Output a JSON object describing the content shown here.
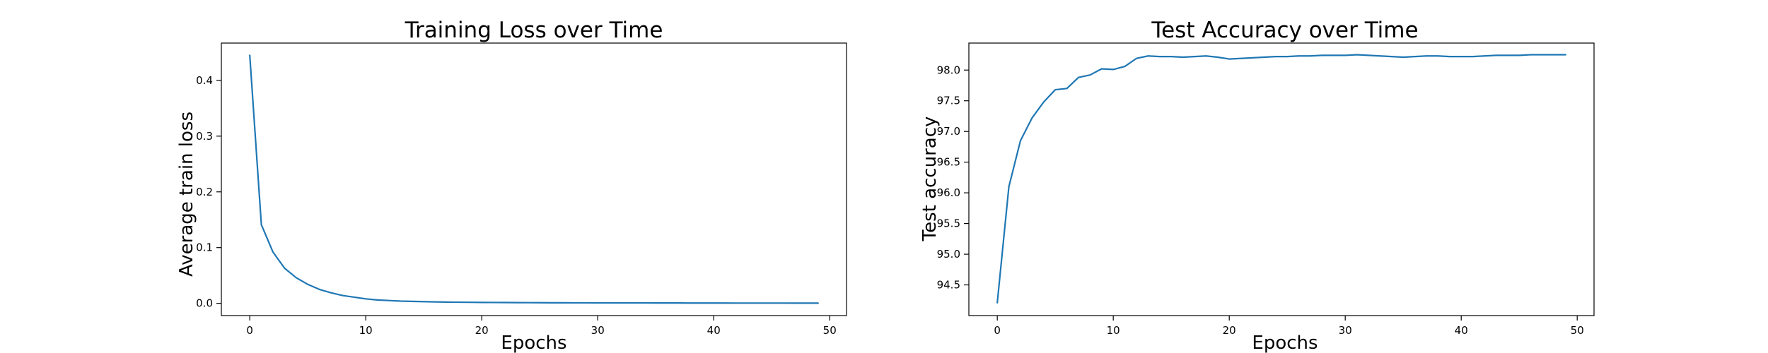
{
  "chart_data": [
    {
      "type": "line",
      "title": "Training Loss over Time",
      "xlabel": "Epochs",
      "ylabel": "Average train loss",
      "xlim": [
        -2.45,
        51.45
      ],
      "ylim": [
        -0.022,
        0.467
      ],
      "xticks": [
        0,
        10,
        20,
        30,
        40,
        50
      ],
      "xtick_labels": [
        "0",
        "10",
        "20",
        "30",
        "40",
        "50"
      ],
      "yticks": [
        0.0,
        0.1,
        0.2,
        0.3,
        0.4
      ],
      "ytick_labels": [
        "0.0",
        "0.1",
        "0.2",
        "0.3",
        "0.4"
      ],
      "grid": false,
      "color": "#1f77b4",
      "series": [
        {
          "x": [
            0,
            1,
            2,
            3,
            4,
            5,
            6,
            7,
            8,
            9,
            10,
            11,
            12,
            13,
            14,
            15,
            16,
            17,
            18,
            19,
            20,
            21,
            22,
            23,
            24,
            25,
            26,
            27,
            28,
            29,
            30,
            31,
            32,
            33,
            34,
            35,
            36,
            37,
            38,
            39,
            40,
            41,
            42,
            43,
            44,
            45,
            46,
            47,
            48,
            49
          ],
          "values": [
            0.445,
            0.141,
            0.092,
            0.063,
            0.046,
            0.034,
            0.025,
            0.019,
            0.014,
            0.011,
            0.008,
            0.006,
            0.005,
            0.004,
            0.0035,
            0.003,
            0.0025,
            0.0022,
            0.002,
            0.0018,
            0.0016,
            0.0015,
            0.0014,
            0.0013,
            0.0012,
            0.0011,
            0.001,
            0.001,
            0.0009,
            0.0009,
            0.0008,
            0.0008,
            0.0007,
            0.0007,
            0.0007,
            0.0006,
            0.0006,
            0.0006,
            0.0005,
            0.0005,
            0.0005,
            0.0005,
            0.0004,
            0.0004,
            0.0004,
            0.0004,
            0.0004,
            0.0003,
            0.0003,
            0.0003
          ]
        }
      ]
    },
    {
      "type": "line",
      "title": "Test Accuracy over Time",
      "xlabel": "Epochs",
      "ylabel": "Test accuracy",
      "xlim": [
        -2.45,
        51.45
      ],
      "ylim": [
        94.0,
        98.44
      ],
      "xticks": [
        0,
        10,
        20,
        30,
        40,
        50
      ],
      "xtick_labels": [
        "0",
        "10",
        "20",
        "30",
        "40",
        "50"
      ],
      "yticks": [
        94.5,
        95.0,
        95.5,
        96.0,
        96.5,
        97.0,
        97.5,
        98.0
      ],
      "ytick_labels": [
        "94.5",
        "95.0",
        "95.5",
        "96.0",
        "96.5",
        "97.0",
        "97.5",
        "98.0"
      ],
      "grid": false,
      "color": "#1f77b4",
      "series": [
        {
          "x": [
            0,
            1,
            2,
            3,
            4,
            5,
            6,
            7,
            8,
            9,
            10,
            11,
            12,
            13,
            14,
            15,
            16,
            17,
            18,
            19,
            20,
            21,
            22,
            23,
            24,
            25,
            26,
            27,
            28,
            29,
            30,
            31,
            32,
            33,
            34,
            35,
            36,
            37,
            38,
            39,
            40,
            41,
            42,
            43,
            44,
            45,
            46,
            47,
            48,
            49
          ],
          "values": [
            94.21,
            96.1,
            96.85,
            97.22,
            97.48,
            97.68,
            97.7,
            97.88,
            97.92,
            98.02,
            98.01,
            98.06,
            98.19,
            98.23,
            98.22,
            98.22,
            98.21,
            98.22,
            98.23,
            98.21,
            98.18,
            98.19,
            98.2,
            98.21,
            98.22,
            98.22,
            98.23,
            98.23,
            98.24,
            98.24,
            98.24,
            98.25,
            98.24,
            98.23,
            98.22,
            98.21,
            98.22,
            98.23,
            98.23,
            98.22,
            98.22,
            98.22,
            98.23,
            98.24,
            98.24,
            98.24,
            98.25,
            98.25,
            98.25,
            98.25
          ]
        }
      ]
    }
  ]
}
